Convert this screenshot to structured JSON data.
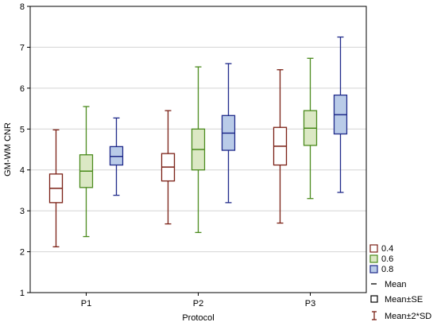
{
  "chart_data": {
    "type": "boxplot",
    "xlabel": "Protocol",
    "ylabel": "GM-WM CNR",
    "ylim": [
      1,
      8
    ],
    "yticks": [
      1,
      2,
      3,
      4,
      5,
      6,
      7,
      8
    ],
    "grid": true,
    "categories": [
      "P1",
      "P2",
      "P3"
    ],
    "legend_position": "bottom-right",
    "series": [
      {
        "name": "0.4",
        "stroke": "#7a1f14",
        "fill": "#ffffff",
        "boxes": [
          {
            "mean": 3.55,
            "se_low": 3.2,
            "se_high": 3.9,
            "sd2_low": 2.12,
            "sd2_high": 4.98
          },
          {
            "mean": 4.07,
            "se_low": 3.73,
            "se_high": 4.4,
            "sd2_low": 2.68,
            "sd2_high": 5.45
          },
          {
            "mean": 4.58,
            "se_low": 4.12,
            "se_high": 5.04,
            "sd2_low": 2.7,
            "sd2_high": 6.45
          }
        ]
      },
      {
        "name": "0.6",
        "stroke": "#4a8a1c",
        "fill": "#dbe8c4",
        "boxes": [
          {
            "mean": 3.97,
            "se_low": 3.57,
            "se_high": 4.37,
            "sd2_low": 2.37,
            "sd2_high": 5.55
          },
          {
            "mean": 4.5,
            "se_low": 4.0,
            "se_high": 5.0,
            "sd2_low": 2.47,
            "sd2_high": 6.52
          },
          {
            "mean": 5.02,
            "se_low": 4.6,
            "se_high": 5.45,
            "sd2_low": 3.3,
            "sd2_high": 6.73
          }
        ]
      },
      {
        "name": "0.8",
        "stroke": "#1f2a8a",
        "fill": "#b9cbe8",
        "boxes": [
          {
            "mean": 4.33,
            "se_low": 4.12,
            "se_high": 4.57,
            "sd2_low": 3.38,
            "sd2_high": 5.27
          },
          {
            "mean": 4.9,
            "se_low": 4.48,
            "se_high": 5.33,
            "sd2_low": 3.2,
            "sd2_high": 6.6
          },
          {
            "mean": 5.35,
            "se_low": 4.88,
            "se_high": 5.83,
            "sd2_low": 3.45,
            "sd2_high": 7.25
          }
        ]
      }
    ],
    "legend_items": [
      "Mean",
      "Mean±SE",
      "Mean±2*SD"
    ]
  }
}
